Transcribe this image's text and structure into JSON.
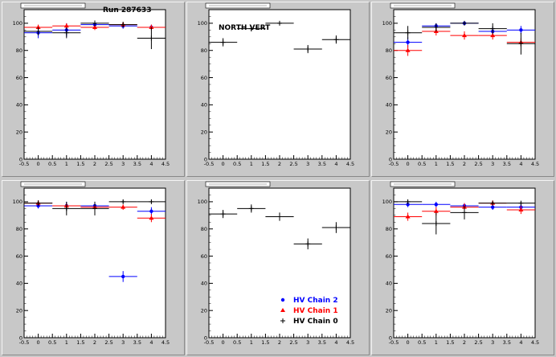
{
  "run_label": "Run 287633",
  "north_label": "NORTH VERT",
  "colors": {
    "chain2": "#0000ff",
    "chain1": "#ff0000",
    "chain0": "#000000",
    "pad": "#c8c8c8",
    "frame": "#ffffff"
  },
  "legend": [
    {
      "label": "HV Chain 2",
      "color": "#0000ff",
      "marker": "circle"
    },
    {
      "label": "HV Chain 1",
      "color": "#ff0000",
      "marker": "triangle"
    },
    {
      "label": "HV Chain 0",
      "color": "#000000",
      "marker": "cross"
    }
  ],
  "chart_data": [
    {
      "type": "scatter",
      "x_ticks": [
        "-0.5",
        "0",
        "0.5",
        "1",
        "1.5",
        "2",
        "2.5",
        "3",
        "3.5",
        "4",
        "4.5"
      ],
      "y_ticks": [
        "0",
        "20",
        "40",
        "60",
        "80",
        "100"
      ],
      "xlim": [
        -0.5,
        4.5
      ],
      "ylim": [
        0,
        110
      ],
      "series": [
        {
          "color": "#0000ff",
          "x": [
            0,
            1,
            2,
            3,
            4
          ],
          "y": [
            93,
            95,
            99,
            98,
            97
          ],
          "yerr": [
            4,
            5,
            2,
            2,
            2
          ]
        },
        {
          "color": "#ff0000",
          "x": [
            0,
            1,
            2,
            3,
            4
          ],
          "y": [
            97,
            98,
            97,
            99,
            97
          ],
          "yerr": [
            2,
            2,
            2,
            2,
            2
          ]
        },
        {
          "color": "#000000",
          "x": [
            0,
            1,
            2,
            3,
            4
          ],
          "y": [
            94,
            93,
            100,
            99,
            89
          ],
          "yerr": [
            3,
            4,
            2,
            2,
            8
          ]
        }
      ]
    },
    {
      "type": "scatter",
      "x_ticks": [
        "-0.5",
        "0",
        "0.5",
        "1",
        "1.5",
        "2",
        "2.5",
        "3",
        "3.5",
        "4",
        "4.5"
      ],
      "y_ticks": [
        "0",
        "20",
        "40",
        "60",
        "80",
        "100"
      ],
      "xlim": [
        -0.5,
        4.5
      ],
      "ylim": [
        0,
        110
      ],
      "series": [
        {
          "color": "#000000",
          "x": [
            0,
            1,
            2,
            3,
            4
          ],
          "y": [
            86,
            96,
            100,
            81,
            88
          ],
          "yerr": [
            3,
            2,
            1,
            3,
            3
          ]
        }
      ]
    },
    {
      "type": "scatter",
      "x_ticks": [
        "-0.5",
        "0",
        "0.5",
        "1",
        "1.5",
        "2",
        "2.5",
        "3",
        "3.5",
        "4",
        "4.5"
      ],
      "y_ticks": [
        "0",
        "20",
        "40",
        "60",
        "80",
        "100"
      ],
      "xlim": [
        -0.5,
        4.5
      ],
      "ylim": [
        0,
        110
      ],
      "series": [
        {
          "color": "#0000ff",
          "x": [
            0,
            1,
            2,
            3,
            4
          ],
          "y": [
            86,
            98,
            100,
            94,
            95
          ],
          "yerr": [
            4,
            2,
            1,
            3,
            3
          ]
        },
        {
          "color": "#ff0000",
          "x": [
            0,
            1,
            2,
            3,
            4
          ],
          "y": [
            80,
            94,
            91,
            91,
            86
          ],
          "yerr": [
            4,
            3,
            3,
            3,
            3
          ]
        },
        {
          "color": "#000000",
          "x": [
            0,
            1,
            2,
            3,
            4
          ],
          "y": [
            93,
            97,
            100,
            96,
            85
          ],
          "yerr": [
            5,
            3,
            1,
            4,
            8
          ]
        }
      ]
    },
    {
      "type": "scatter",
      "x_ticks": [
        "-0.5",
        "0",
        "0.5",
        "1",
        "1.5",
        "2",
        "2.5",
        "3",
        "3.5",
        "4",
        "4.5"
      ],
      "y_ticks": [
        "0",
        "20",
        "40",
        "60",
        "80",
        "100"
      ],
      "xlim": [
        -0.5,
        4.5
      ],
      "ylim": [
        0,
        110
      ],
      "series": [
        {
          "color": "#0000ff",
          "x": [
            0,
            1,
            2,
            3,
            4
          ],
          "y": [
            97,
            97,
            97,
            45,
            93
          ],
          "yerr": [
            2,
            3,
            3,
            4,
            3
          ]
        },
        {
          "color": "#ff0000",
          "x": [
            0,
            1,
            2,
            3,
            4
          ],
          "y": [
            99,
            97,
            96,
            96,
            88
          ],
          "yerr": [
            2,
            2,
            3,
            2,
            3
          ]
        },
        {
          "color": "#000000",
          "x": [
            0,
            1,
            2,
            3,
            4
          ],
          "y": [
            99,
            95,
            95,
            100,
            100
          ],
          "yerr": [
            2,
            5,
            5,
            1,
            1
          ]
        }
      ]
    },
    {
      "type": "scatter",
      "x_ticks": [
        "-0.5",
        "0",
        "0.5",
        "1",
        "1.5",
        "2",
        "2.5",
        "3",
        "3.5",
        "4",
        "4.5"
      ],
      "y_ticks": [
        "0",
        "20",
        "40",
        "60",
        "80",
        "100"
      ],
      "xlim": [
        -0.5,
        4.5
      ],
      "ylim": [
        0,
        110
      ],
      "series": [
        {
          "color": "#000000",
          "x": [
            0,
            1,
            2,
            3,
            4
          ],
          "y": [
            91,
            95,
            89,
            69,
            81
          ],
          "yerr": [
            3,
            3,
            3,
            4,
            4
          ]
        }
      ]
    },
    {
      "type": "scatter",
      "x_ticks": [
        "-0.5",
        "0",
        "0.5",
        "1",
        "1.5",
        "2",
        "2.5",
        "3",
        "3.5",
        "4",
        "4.5"
      ],
      "y_ticks": [
        "0",
        "20",
        "40",
        "60",
        "80",
        "100"
      ],
      "xlim": [
        -0.5,
        4.5
      ],
      "ylim": [
        0,
        110
      ],
      "series": [
        {
          "color": "#0000ff",
          "x": [
            0,
            1,
            2,
            3,
            4
          ],
          "y": [
            98,
            98,
            97,
            96,
            96
          ],
          "yerr": [
            2,
            2,
            2,
            2,
            2
          ]
        },
        {
          "color": "#ff0000",
          "x": [
            0,
            1,
            2,
            3,
            4
          ],
          "y": [
            89,
            93,
            96,
            99,
            94
          ],
          "yerr": [
            3,
            3,
            3,
            2,
            3
          ]
        },
        {
          "color": "#000000",
          "x": [
            0,
            1,
            2,
            3,
            4
          ],
          "y": [
            100,
            84,
            92,
            99,
            99
          ],
          "yerr": [
            1,
            8,
            5,
            1,
            1
          ]
        }
      ]
    }
  ]
}
